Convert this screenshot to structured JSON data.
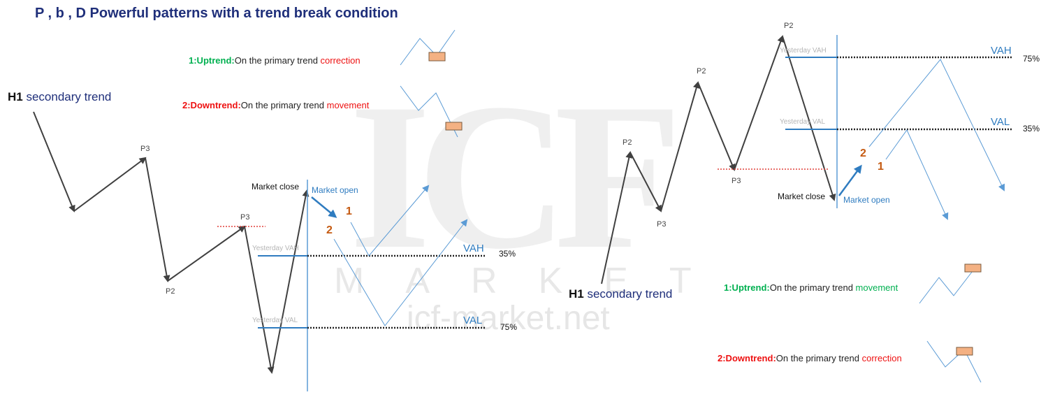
{
  "watermark": {
    "logo": "ICF",
    "letters": "MARKET",
    "url": "icf-market.net"
  },
  "title": "P , b , D  Powerful patterns with a trend break condition",
  "left": {
    "h1_prefix": "H1",
    "h1_text": "secondary trend",
    "uptrend": {
      "lead": "1:Uptrend:",
      "text": "On the primary trend ",
      "keyword": "correction"
    },
    "downtrend": {
      "lead": "2:Downtrend:",
      "text": "On the primary trend ",
      "keyword": "movement"
    },
    "points": {
      "p3a": "P3",
      "p2": "P2",
      "p3b": "P3"
    },
    "market_close": "Market close",
    "market_open": "Market open",
    "num1": "1",
    "num2": "2",
    "yesterday_vah": "Yesterday VAH",
    "yesterday_val": "Yesterday VAL",
    "vah": "VAH",
    "val": "VAL",
    "vah_pct": "35%",
    "val_pct": "75%"
  },
  "right": {
    "h1_prefix": "H1",
    "h1_text": "secondary trend",
    "uptrend": {
      "lead": "1:Uptrend:",
      "text": "On the primary trend ",
      "keyword": "movement"
    },
    "downtrend": {
      "lead": "2:Downtrend:",
      "text": "On the primary trend ",
      "keyword": "correction"
    },
    "points": {
      "p2a": "P2",
      "p3a": "P3",
      "p2b": "P2",
      "p3b": "P3",
      "p2c": "P2"
    },
    "market_close": "Market close",
    "market_open": "Market open",
    "num1": "1",
    "num2": "2",
    "yesterday_vah": "Yesterday VAH",
    "yesterday_val": "Yesterday VAL",
    "vah": "VAH",
    "val": "VAL",
    "vah_pct": "75%",
    "val_pct": "35%"
  },
  "colors": {
    "navy": "#1f2f7a",
    "green": "#00b050",
    "red": "#ee1111",
    "blue": "#2f7cc0",
    "orange": "#c55a11",
    "box": "#f4b183"
  }
}
